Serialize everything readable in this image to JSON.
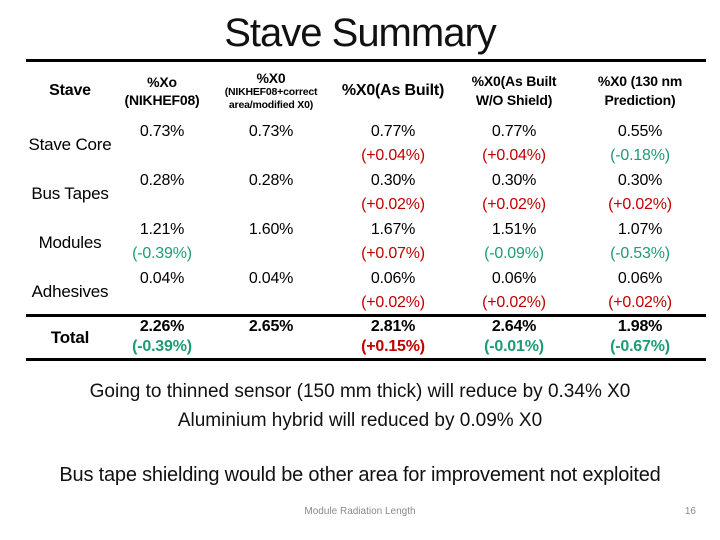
{
  "slide": {
    "title": "Stave Summary",
    "notes": [
      "Going to thinned sensor (150 mm thick) will reduce by 0.34% X0",
      "Aluminium hybrid will reduced by 0.09% X0"
    ],
    "callout": "Bus tape shielding would be other area for improvement not exploited",
    "footer": {
      "label": "Module Radiation Length",
      "page_number": "16"
    }
  },
  "colors": {
    "delta_positive": "#c00000",
    "delta_negative": "#1e9b74",
    "text": "#000000",
    "footer_gray": "#8a8a8a"
  },
  "table": {
    "col_headers": [
      {
        "lines": [
          "Stave"
        ]
      },
      {
        "lines": [
          "%Xo",
          "(NIKHEF08)"
        ]
      },
      {
        "lines": [
          "%X0"
        ],
        "sub_lines": [
          "(NIKHEF08+correct",
          "area/modified X0)"
        ]
      },
      {
        "lines": [
          "%X0(As Built)"
        ]
      },
      {
        "lines": [
          "%X0(As Built",
          "W/O Shield)"
        ]
      },
      {
        "lines": [
          "%X0 (130 nm",
          "Prediction)"
        ]
      }
    ],
    "rows": [
      {
        "label": "Stave Core",
        "cells": [
          {
            "value": "0.73%"
          },
          {
            "value": "0.73%"
          },
          {
            "value": "0.77%",
            "delta": "(+0.04%)",
            "trend": "positive"
          },
          {
            "value": "0.77%",
            "delta": "(+0.04%)",
            "trend": "positive"
          },
          {
            "value": "0.55%",
            "delta": "(-0.18%)",
            "trend": "negative"
          }
        ]
      },
      {
        "label": "Bus Tapes",
        "cells": [
          {
            "value": "0.28%"
          },
          {
            "value": "0.28%"
          },
          {
            "value": "0.30%",
            "delta": "(+0.02%)",
            "trend": "positive"
          },
          {
            "value": "0.30%",
            "delta": "(+0.02%)",
            "trend": "positive"
          },
          {
            "value": "0.30%",
            "delta": "(+0.02%)",
            "trend": "positive"
          }
        ]
      },
      {
        "label": "Modules",
        "cells": [
          {
            "value": "1.21%",
            "delta": "(-0.39%)",
            "trend": "negative"
          },
          {
            "value": "1.60%"
          },
          {
            "value": "1.67%",
            "delta": "(+0.07%)",
            "trend": "positive"
          },
          {
            "value": "1.51%",
            "delta": "(-0.09%)",
            "trend": "negative"
          },
          {
            "value": "1.07%",
            "delta": "(-0.53%)",
            "trend": "negative"
          }
        ]
      },
      {
        "label": "Adhesives",
        "cells": [
          {
            "value": "0.04%"
          },
          {
            "value": "0.04%"
          },
          {
            "value": "0.06%",
            "delta": "(+0.02%)",
            "trend": "positive"
          },
          {
            "value": "0.06%",
            "delta": "(+0.02%)",
            "trend": "positive"
          },
          {
            "value": "0.06%",
            "delta": "(+0.02%)",
            "trend": "positive"
          }
        ]
      }
    ],
    "total_row": {
      "label": "Total",
      "cells": [
        {
          "value": "2.26%",
          "delta": "(-0.39%)",
          "trend": "negative"
        },
        {
          "value": "2.65%"
        },
        {
          "value": "2.81%",
          "delta": "(+0.15%)",
          "trend": "positive"
        },
        {
          "value": "2.64%",
          "delta": "(-0.01%)",
          "trend": "negative"
        },
        {
          "value": "1.98%",
          "delta": "(-0.67%)",
          "trend": "negative"
        }
      ]
    }
  }
}
